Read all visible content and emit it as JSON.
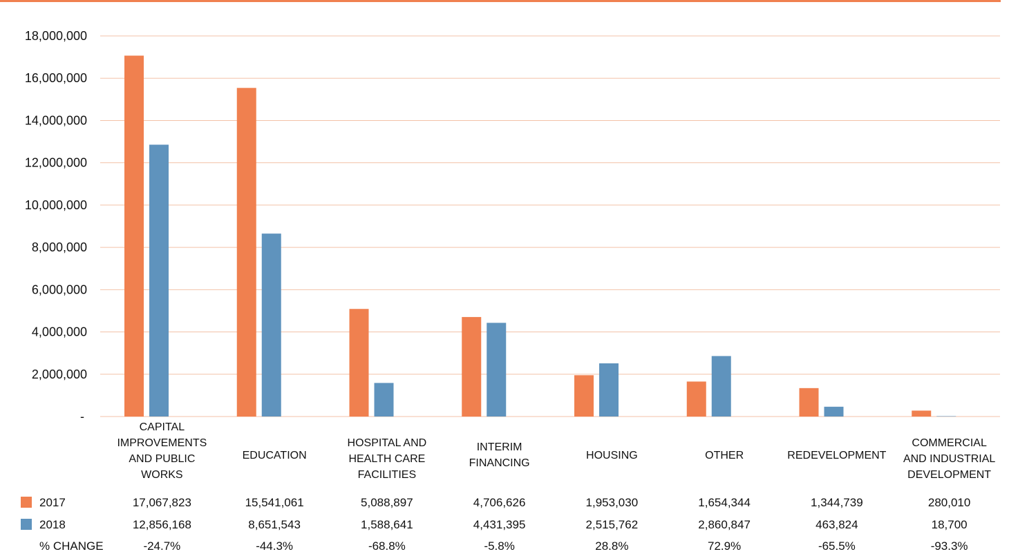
{
  "colors": {
    "series_2017": "#f0804f",
    "series_2018": "#5f93bd",
    "gridline": "#f3c2a8",
    "top_rule": "#f0804f",
    "text": "#111111"
  },
  "chart_data": {
    "type": "bar",
    "title": "",
    "xlabel": "",
    "ylabel": "",
    "ylim": [
      0,
      18000000
    ],
    "y_ticks": [
      0,
      2000000,
      4000000,
      6000000,
      8000000,
      10000000,
      12000000,
      14000000,
      16000000,
      18000000
    ],
    "y_tick_labels": [
      "-",
      "2,000,000",
      "4,000,000",
      "6,000,000",
      "8,000,000",
      "10,000,000",
      "12,000,000",
      "14,000,000",
      "16,000,000",
      "18,000,000"
    ],
    "grid": true,
    "legend_placement": "data table below chart",
    "categories": [
      [
        "CAPITAL",
        "IMPROVEMENTS",
        "AND PUBLIC",
        "WORKS"
      ],
      [
        "EDUCATION"
      ],
      [
        "HOSPITAL AND",
        "HEALTH CARE",
        "FACILITIES"
      ],
      [
        "INTERIM",
        "FINANCING"
      ],
      [
        "HOUSING"
      ],
      [
        "OTHER"
      ],
      [
        "REDEVELOPMENT"
      ],
      [
        "COMMERCIAL",
        "AND INDUSTRIAL",
        "DEVELOPMENT"
      ]
    ],
    "series": [
      {
        "name": "2017",
        "values": [
          17067823,
          15541061,
          5088897,
          4706626,
          1953030,
          1654344,
          1344739,
          280010
        ],
        "labels": [
          "17,067,823",
          "15,541,061",
          "5,088,897",
          "4,706,626",
          "1,953,030",
          "1,654,344",
          "1,344,739",
          "280,010"
        ]
      },
      {
        "name": "2018",
        "values": [
          12856168,
          8651543,
          1588641,
          4431395,
          2515762,
          2860847,
          463824,
          18700
        ],
        "labels": [
          "12,856,168",
          "8,651,543",
          "1,588,641",
          "4,431,395",
          "2,515,762",
          "2,860,847",
          "463,824",
          "18,700"
        ]
      }
    ],
    "pct_change": {
      "label": "% CHANGE",
      "values": [
        "-24.7%",
        "-44.3%",
        "-68.8%",
        "-5.8%",
        "28.8%",
        "72.9%",
        "-65.5%",
        "-93.3%"
      ]
    }
  }
}
